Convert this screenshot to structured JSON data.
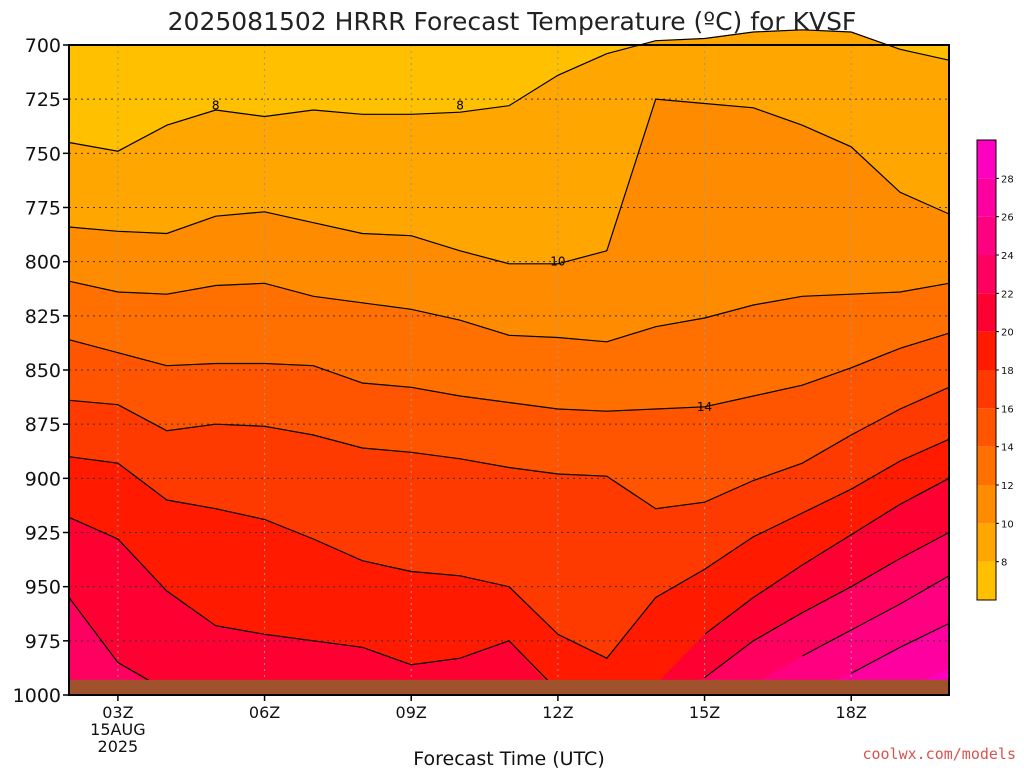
{
  "chart_data": {
    "type": "heatmap",
    "title": "2025081502 HRRR Forecast Temperature (ºC) for KVSF",
    "xlabel": "Forecast Time (UTC)",
    "ylabel": "",
    "credit": "coolwx.com/models",
    "x_ticks": [
      {
        "value": 3,
        "label": "03Z",
        "sub": [
          "15AUG",
          "2025"
        ]
      },
      {
        "value": 6,
        "label": "06Z"
      },
      {
        "value": 9,
        "label": "09Z"
      },
      {
        "value": 12,
        "label": "12Z"
      },
      {
        "value": 15,
        "label": "15Z"
      },
      {
        "value": 18,
        "label": "18Z"
      }
    ],
    "xlim": [
      2,
      20
    ],
    "y_ticks": [
      700,
      725,
      750,
      775,
      800,
      825,
      850,
      875,
      900,
      925,
      950,
      975,
      1000
    ],
    "ylim": [
      1000,
      700
    ],
    "contour_labels": [
      {
        "text": "8",
        "x": 5,
        "y": 728
      },
      {
        "text": "8",
        "x": 10,
        "y": 728
      },
      {
        "text": "10",
        "x": 12,
        "y": 800
      },
      {
        "text": "14",
        "x": 15,
        "y": 867
      }
    ],
    "colorbar": {
      "ticks": [
        8,
        10,
        12,
        14,
        16,
        18,
        20,
        22,
        24,
        26,
        28
      ],
      "range": [
        6,
        30
      ],
      "levels": [
        {
          "lo": 6,
          "hi": 8,
          "color": "#ffc000"
        },
        {
          "lo": 8,
          "hi": 10,
          "color": "#ffa600"
        },
        {
          "lo": 10,
          "hi": 12,
          "color": "#ff8c00"
        },
        {
          "lo": 12,
          "hi": 14,
          "color": "#ff7000"
        },
        {
          "lo": 14,
          "hi": 16,
          "color": "#ff5500"
        },
        {
          "lo": 16,
          "hi": 18,
          "color": "#ff3a00"
        },
        {
          "lo": 18,
          "hi": 20,
          "color": "#ff1a00"
        },
        {
          "lo": 20,
          "hi": 22,
          "color": "#ff0033"
        },
        {
          "lo": 22,
          "hi": 24,
          "color": "#ff0060"
        },
        {
          "lo": 24,
          "hi": 26,
          "color": "#ff0080"
        },
        {
          "lo": 26,
          "hi": 28,
          "color": "#ff00a0"
        },
        {
          "lo": 28,
          "hi": 30,
          "color": "#ff00c0"
        }
      ]
    },
    "times": [
      2,
      3,
      4,
      5,
      6,
      7,
      8,
      9,
      10,
      11,
      12,
      13,
      14,
      15,
      16,
      17,
      18,
      19,
      20
    ],
    "isotherms": [
      {
        "value": 8,
        "p": [
          745,
          749,
          737,
          730,
          733,
          730,
          732,
          732,
          731,
          728,
          714,
          704,
          698,
          697,
          694,
          693,
          694,
          702,
          707
        ]
      },
      {
        "value": 10,
        "p": [
          784,
          786,
          787,
          779,
          777,
          782,
          787,
          788,
          795,
          801,
          801,
          795,
          725,
          727,
          729,
          737,
          747,
          768,
          778
        ]
      },
      {
        "value": 12,
        "p": [
          809,
          814,
          815,
          811,
          810,
          816,
          819,
          822,
          827,
          834,
          835,
          837,
          830,
          826,
          820,
          816,
          815,
          814,
          810
        ]
      },
      {
        "value": 14,
        "p": [
          836,
          842,
          848,
          847,
          847,
          848,
          856,
          858,
          862,
          865,
          868,
          869,
          868,
          867,
          862,
          857,
          849,
          840,
          833
        ]
      },
      {
        "value": 16,
        "p": [
          864,
          866,
          878,
          875,
          876,
          880,
          886,
          888,
          891,
          895,
          898,
          899,
          914,
          911,
          901,
          893,
          880,
          868,
          858
        ]
      },
      {
        "value": 18,
        "p": [
          890,
          893,
          910,
          914,
          919,
          928,
          938,
          943,
          945,
          950,
          972,
          983,
          955,
          942,
          927,
          916,
          905,
          892,
          882
        ]
      },
      {
        "value": 20,
        "p": [
          918,
          928,
          952,
          968,
          972,
          975,
          978,
          986,
          983,
          975,
          1000,
          1000,
          995,
          972,
          955,
          940,
          926,
          912,
          900
        ]
      },
      {
        "value": 22,
        "p": [
          955,
          985,
          1000,
          1000,
          1000,
          1000,
          1000,
          1000,
          1000,
          1000,
          1000,
          1000,
          1000,
          992,
          975,
          962,
          950,
          937,
          925
        ]
      },
      {
        "value": 24,
        "p": [
          1000,
          1000,
          1000,
          1000,
          1000,
          1000,
          1000,
          1000,
          1000,
          1000,
          1000,
          1000,
          1000,
          1000,
          995,
          982,
          970,
          958,
          945
        ]
      },
      {
        "value": 26,
        "p": [
          1000,
          1000,
          1000,
          1000,
          1000,
          1000,
          1000,
          1000,
          1000,
          1000,
          1000,
          1000,
          1000,
          1000,
          1000,
          1000,
          990,
          978,
          967
        ]
      },
      {
        "value": 28,
        "p": [
          1000,
          1000,
          1000,
          1000,
          1000,
          1000,
          1000,
          1000,
          1000,
          1000,
          1000,
          1000,
          1000,
          1000,
          1000,
          1000,
          1000,
          998,
          988
        ]
      }
    ],
    "ground_color": "#a0522d",
    "ground_p": 993,
    "grid": "dotted"
  }
}
